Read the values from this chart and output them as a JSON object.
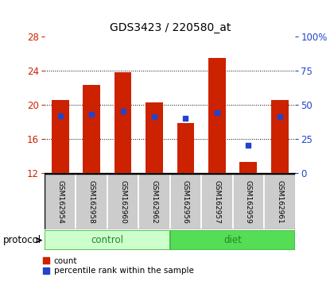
{
  "title": "GDS3423 / 220580_at",
  "samples": [
    "GSM162954",
    "GSM162958",
    "GSM162960",
    "GSM162962",
    "GSM162956",
    "GSM162957",
    "GSM162959",
    "GSM162961"
  ],
  "groups": [
    "control",
    "control",
    "control",
    "control",
    "diet",
    "diet",
    "diet",
    "diet"
  ],
  "count_values": [
    20.5,
    22.3,
    23.8,
    20.3,
    17.8,
    25.5,
    13.3,
    20.5
  ],
  "percentile_values": [
    42,
    43,
    45,
    41,
    40,
    44,
    20,
    41
  ],
  "ylim_left": [
    12,
    28
  ],
  "ylim_right": [
    0,
    100
  ],
  "yticks_left": [
    12,
    16,
    20,
    24,
    28
  ],
  "yticks_right": [
    0,
    25,
    50,
    75,
    100
  ],
  "yticklabels_right": [
    "0",
    "25",
    "50",
    "75",
    "100%"
  ],
  "bar_color": "#cc2200",
  "dot_color": "#2244cc",
  "bar_bottom": 12,
  "bar_width": 0.55,
  "control_color_light": "#ccffcc",
  "diet_color": "#55dd55",
  "group_label_color": "#228822",
  "tick_label_color_left": "#cc2200",
  "tick_label_color_right": "#2244cc",
  "protocol_label": "protocol",
  "legend_count": "count",
  "legend_percentile": "percentile rank within the sample",
  "bg_color": "#ffffff",
  "label_box_color": "#cccccc",
  "label_box_edge": "#888888"
}
